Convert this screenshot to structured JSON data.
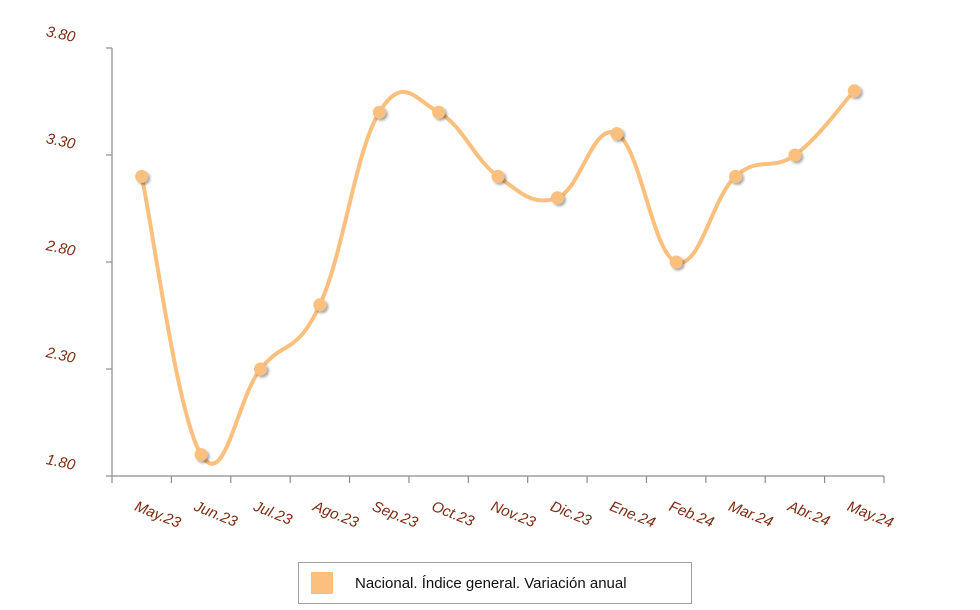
{
  "chart_data": {
    "type": "line",
    "categories": [
      "May.23",
      "Jun.23",
      "Jul.23",
      "Ago.23",
      "Sep.23",
      "Oct.23",
      "Nov.23",
      "Dic.23",
      "Ene.24",
      "Feb.24",
      "Mar.24",
      "Abr.24",
      "May.24"
    ],
    "series": [
      {
        "name": "Nacional. Índice general. Variación anual",
        "values": [
          3.2,
          1.9,
          2.3,
          2.6,
          3.5,
          3.5,
          3.2,
          3.1,
          3.4,
          2.8,
          3.2,
          3.3,
          3.6
        ]
      }
    ],
    "yticks": [
      "3.80",
      "3.30",
      "2.80",
      "2.30",
      "1.80"
    ],
    "ylim": [
      1.8,
      3.8
    ],
    "grid": false,
    "legend_position": "bottom"
  },
  "colors": {
    "line": "#fbbf7e",
    "marker": "#fbbf7e",
    "axis": "#8c8c8c",
    "tick_text": "#7a2a10"
  }
}
